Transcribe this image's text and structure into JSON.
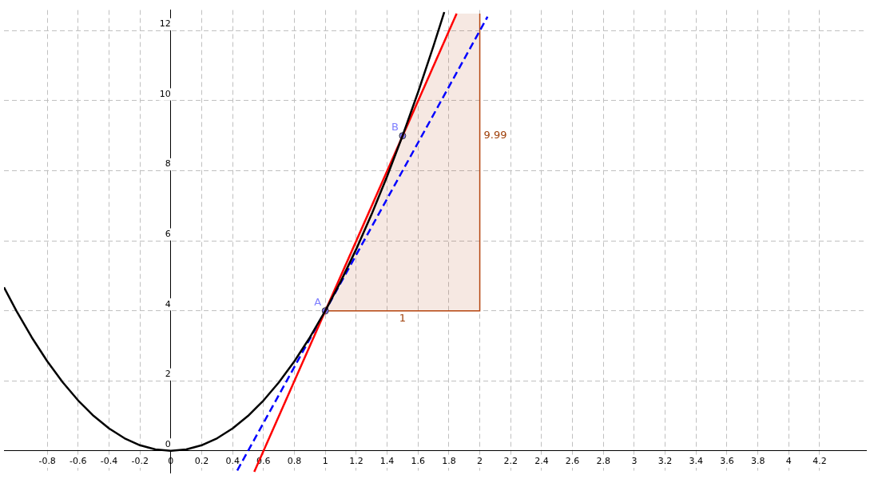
{
  "chart_data": {
    "type": "line",
    "xlim": [
      -1.08,
      4.5
    ],
    "ylim": [
      -0.63,
      12.59
    ],
    "xticks": [
      -0.8,
      -0.6,
      -0.4,
      -0.2,
      0,
      0.2,
      0.4,
      0.6,
      0.8,
      1,
      1.2,
      1.4,
      1.6,
      1.8,
      2,
      2.2,
      2.4,
      2.6,
      2.8,
      3,
      3.2,
      3.4,
      3.6,
      3.8,
      4,
      4.2
    ],
    "yticks": [
      0,
      2,
      4,
      6,
      8,
      10,
      12
    ],
    "grid": true,
    "legend": false,
    "series": [
      {
        "type": "area",
        "color": "#b5450f",
        "x": [
          1,
          2,
          2,
          1.85
        ],
        "values": [
          4,
          4,
          12.49,
          12.49
        ]
      },
      {
        "type": "line",
        "color": "#000000",
        "marker": "none",
        "line_style": "solid",
        "x": [
          -1.08,
          -1,
          -0.9,
          -0.8,
          -0.7,
          -0.6,
          -0.5,
          -0.4,
          -0.3,
          -0.2,
          -0.1,
          0,
          0.1,
          0.2,
          0.3,
          0.4,
          0.5,
          0.6,
          0.7,
          0.8,
          0.9,
          1,
          1.1,
          1.2,
          1.3,
          1.4,
          1.5,
          1.6,
          1.7,
          1.77
        ],
        "values": [
          4.67,
          4,
          3.24,
          2.56,
          1.96,
          1.44,
          1,
          0.64,
          0.36,
          0.16,
          0.04,
          0,
          0.04,
          0.16,
          0.36,
          0.64,
          1,
          1.44,
          1.96,
          2.56,
          3.24,
          4,
          4.84,
          5.76,
          6.76,
          7.84,
          9,
          10.24,
          11.56,
          12.53
        ]
      },
      {
        "type": "line",
        "color": "#ff0000",
        "marker": "none",
        "line_style": "solid",
        "x": [
          0.54,
          1.85
        ],
        "values": [
          -0.6,
          12.49
        ]
      },
      {
        "type": "line",
        "color": "#0000ff",
        "marker": "none",
        "line_style": "dashed",
        "x": [
          0.43,
          2.05
        ],
        "values": [
          -0.56,
          12.4
        ]
      },
      {
        "type": "scatter",
        "name": "A",
        "color": "#7f7fff",
        "marker": "circle",
        "x": [
          1
        ],
        "values": [
          4
        ]
      },
      {
        "type": "scatter",
        "name": "B",
        "color": "#7f7fff",
        "marker": "circle",
        "x": [
          1.5
        ],
        "values": [
          9
        ]
      }
    ],
    "annotations": [
      {
        "text": "9.99",
        "x": 2,
        "y": 9
      },
      {
        "text": "1",
        "x": 1.5,
        "y": 4
      }
    ]
  }
}
